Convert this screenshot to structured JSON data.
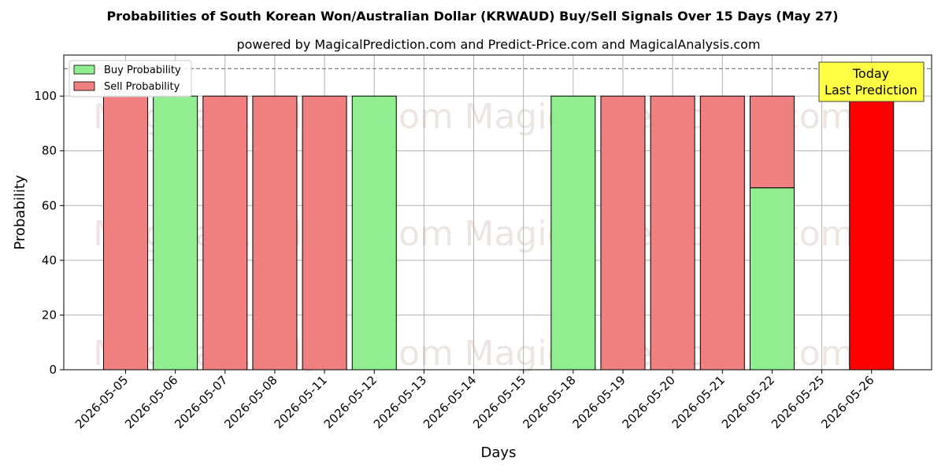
{
  "chart_data": {
    "type": "bar",
    "title": "Probabilities of South Korean Won/Australian Dollar (KRWAUD) Buy/Sell Signals Over 15 Days (May 27)",
    "subtitle": "powered by MagicalPrediction.com and Predict-Price.com and MagicalAnalysis.com",
    "xlabel": "Days",
    "ylabel": "Probability",
    "ylim": [
      0,
      115
    ],
    "yticks": [
      0,
      20,
      40,
      60,
      80,
      100
    ],
    "grid": true,
    "legend_position": "top-left",
    "reference_line": 110,
    "categories": [
      "2026-05-05",
      "2026-05-06",
      "2026-05-07",
      "2026-05-08",
      "2026-05-11",
      "2026-05-12",
      "2026-05-13",
      "2026-05-14",
      "2026-05-15",
      "2026-05-18",
      "2026-05-19",
      "2026-05-20",
      "2026-05-21",
      "2026-05-22",
      "2026-05-25",
      "2026-05-26"
    ],
    "series": [
      {
        "name": "Buy Probability",
        "color": "#90ee90",
        "values": [
          0,
          100,
          0,
          0,
          0,
          100,
          0,
          0,
          0,
          100,
          0,
          0,
          0,
          66.5,
          0,
          0
        ]
      },
      {
        "name": "Sell Probability",
        "color": "#f08080",
        "values": [
          100,
          0,
          100,
          100,
          100,
          0,
          0,
          0,
          0,
          0,
          100,
          100,
          100,
          33.5,
          0,
          100
        ]
      }
    ],
    "highlight": {
      "category": "2026-05-26",
      "color": "#ff0000"
    },
    "annotation": {
      "line1": "Today",
      "line2": "Last Prediction",
      "background": "#ffff44"
    },
    "watermarks": [
      "MagicalAnalysis.com",
      "MagicalPrediction.com"
    ]
  }
}
